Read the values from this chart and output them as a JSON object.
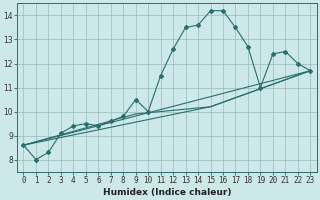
{
  "xlabel": "Humidex (Indice chaleur)",
  "bg_color": "#cce8e8",
  "grid_color": "#99bbbb",
  "line_color": "#2a6e6e",
  "xlim": [
    -0.5,
    23.5
  ],
  "ylim": [
    7.5,
    14.5
  ],
  "xticks": [
    0,
    1,
    2,
    3,
    4,
    5,
    6,
    7,
    8,
    9,
    10,
    11,
    12,
    13,
    14,
    15,
    16,
    17,
    18,
    19,
    20,
    21,
    22,
    23
  ],
  "yticks": [
    8,
    9,
    10,
    11,
    12,
    13,
    14
  ],
  "series_main": {
    "x": [
      0,
      1,
      2,
      3,
      4,
      5,
      6,
      7,
      8,
      9,
      10,
      11,
      12,
      13,
      14,
      15,
      16,
      17,
      18,
      19,
      20,
      21,
      22,
      23
    ],
    "y": [
      8.6,
      8.0,
      8.3,
      9.1,
      9.4,
      9.5,
      9.4,
      9.6,
      9.8,
      10.5,
      10.0,
      11.5,
      12.6,
      13.5,
      13.6,
      14.2,
      14.2,
      13.5,
      12.7,
      11.0,
      12.4,
      12.5,
      12.0,
      11.7
    ]
  },
  "series_lines": [
    {
      "x": [
        0,
        23
      ],
      "y": [
        8.6,
        11.7
      ]
    },
    {
      "x": [
        0,
        15,
        23
      ],
      "y": [
        8.6,
        10.2,
        11.7
      ]
    },
    {
      "x": [
        0,
        9,
        15,
        23
      ],
      "y": [
        8.6,
        9.9,
        10.2,
        11.7
      ]
    }
  ],
  "xlabel_fontsize": 6.5,
  "xlabel_fontweight": "bold",
  "tick_labelsize": 5.5,
  "line_width": 0.8,
  "marker_size": 2.0
}
